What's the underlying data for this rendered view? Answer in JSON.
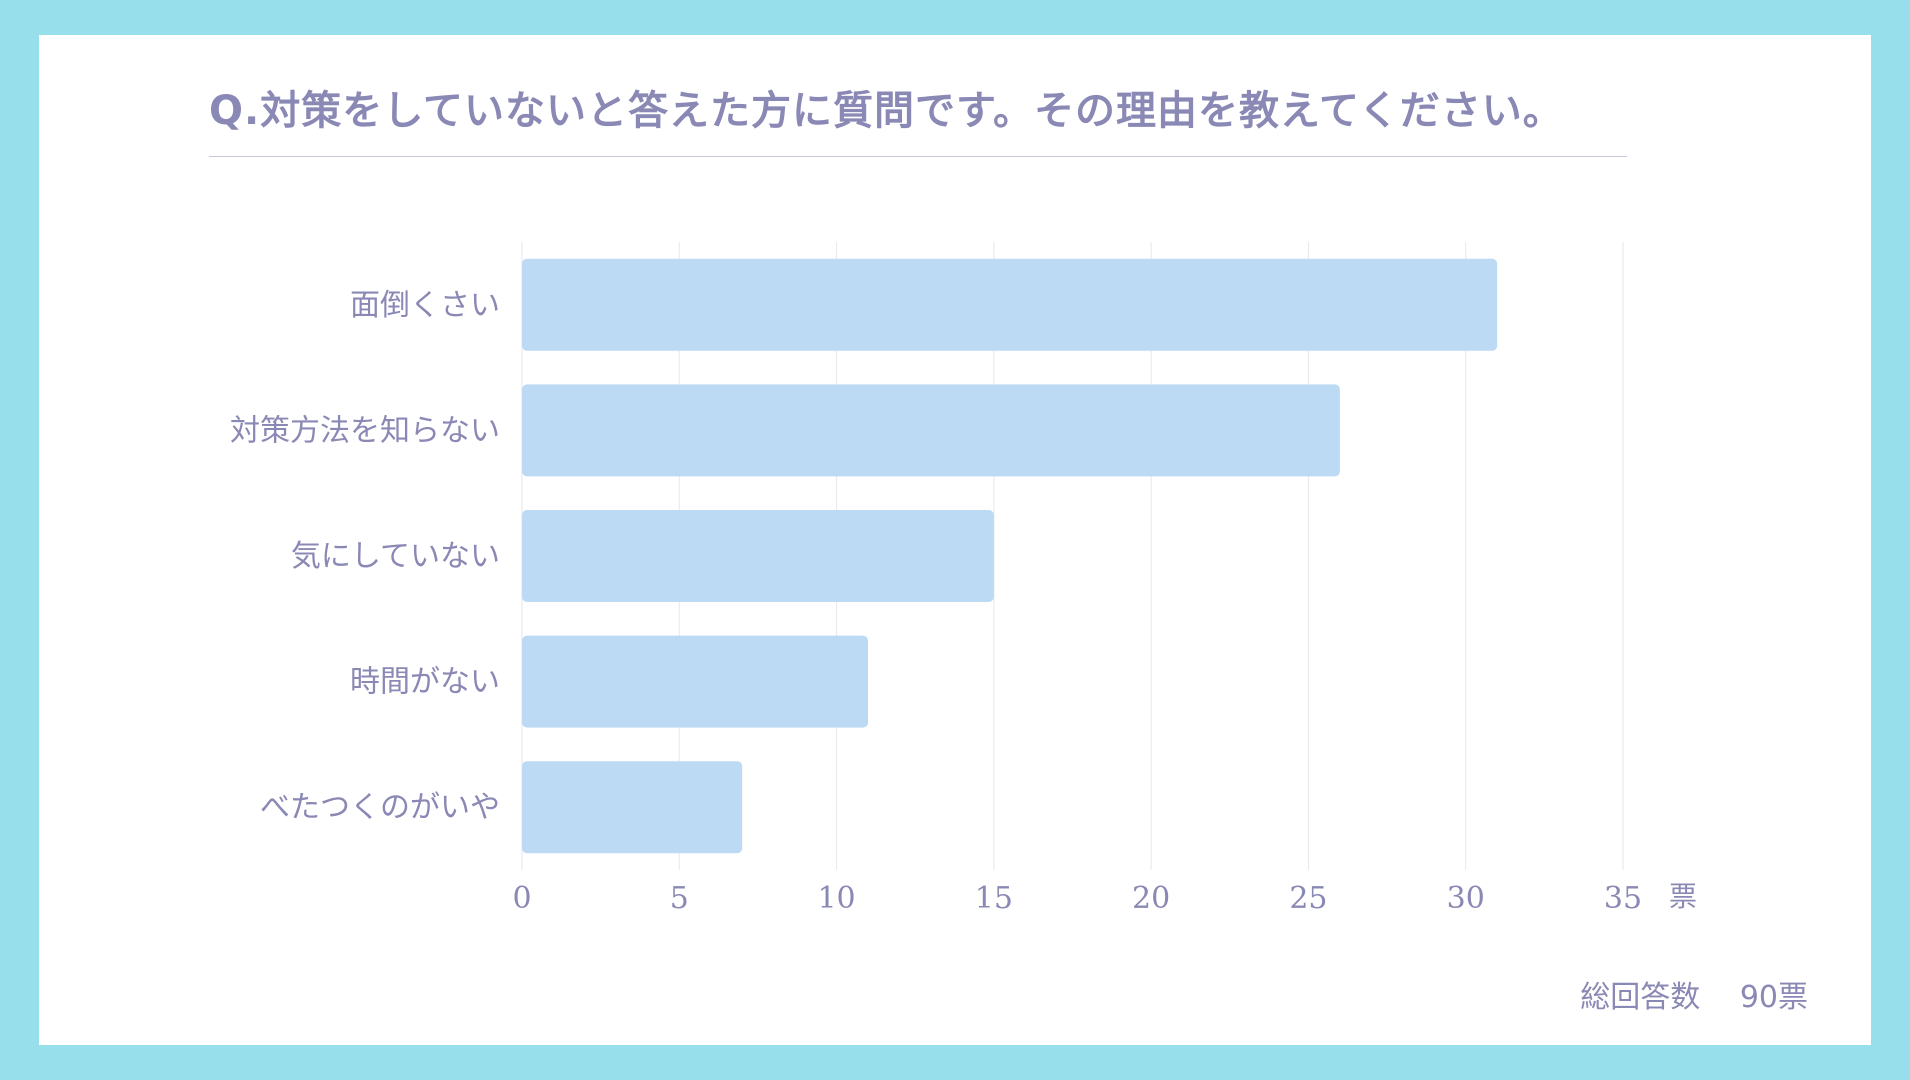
{
  "title": "Q.対策をしていないと答えた方に質問です。その理由を教えてください。",
  "total_label": "総回答数　 90票",
  "colors": {
    "background": "#96dfeb",
    "card": "#ffffff",
    "bar": "#bddaf5",
    "text": "#8a88b4",
    "grid": "#e6e6ee"
  },
  "chart_data": {
    "type": "bar",
    "orientation": "horizontal",
    "categories": [
      "面倒くさい",
      "対策方法を知らない",
      "気にしていない",
      "時間がない",
      "べたつくのがいや"
    ],
    "values": [
      31,
      26,
      15,
      11,
      7
    ],
    "xlim": [
      0,
      35
    ],
    "xticks": [
      0,
      5,
      10,
      15,
      20,
      25,
      30,
      35
    ],
    "x_unit": "票",
    "grid": true
  }
}
